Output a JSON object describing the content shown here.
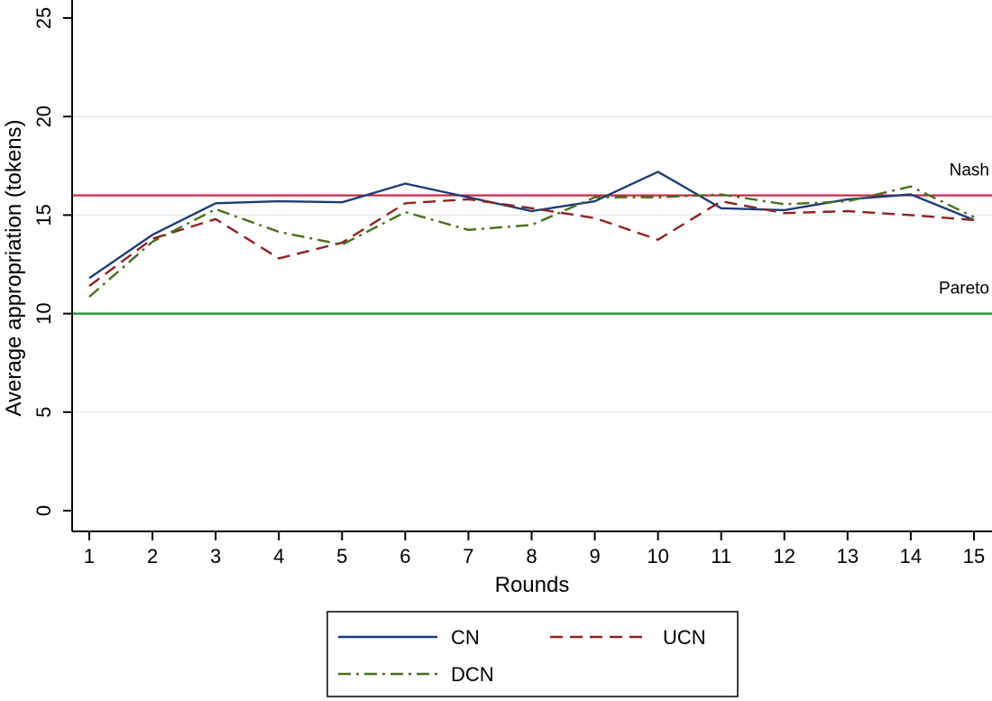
{
  "chart_data": {
    "type": "line",
    "xlabel": "Rounds",
    "ylabel": "Average appropriation (tokens)",
    "x": [
      1,
      2,
      3,
      4,
      5,
      6,
      7,
      8,
      9,
      10,
      11,
      12,
      13,
      14,
      15
    ],
    "xlim": [
      1,
      15
    ],
    "ylim": [
      0,
      25
    ],
    "yticks": [
      0,
      5,
      10,
      15,
      20,
      25
    ],
    "grid": true,
    "legend_position": "bottom",
    "series": [
      {
        "name": "CN",
        "color": "#1f3d73",
        "dash": "solid",
        "values": [
          11.8,
          14.0,
          15.6,
          15.7,
          15.65,
          16.6,
          15.9,
          15.2,
          15.7,
          17.2,
          15.35,
          15.25,
          15.8,
          16.05,
          14.75
        ]
      },
      {
        "name": "UCN",
        "color": "#8b2424",
        "dash": "dash",
        "values": [
          11.4,
          13.8,
          14.8,
          12.8,
          13.6,
          15.6,
          15.8,
          15.35,
          14.85,
          13.75,
          15.7,
          15.1,
          15.2,
          15.0,
          14.75
        ]
      },
      {
        "name": "DCN",
        "color": "#4a6e1e",
        "dash": "dashdot",
        "values": [
          10.85,
          13.65,
          15.3,
          14.15,
          13.5,
          15.15,
          14.25,
          14.5,
          15.9,
          15.9,
          16.05,
          15.55,
          15.7,
          16.45,
          14.9
        ]
      }
    ],
    "reference_lines": [
      {
        "label": "Nash",
        "value": 16,
        "color": "#c8203c"
      },
      {
        "label": "Pareto",
        "value": 10,
        "color": "#1f8a2a"
      }
    ]
  }
}
